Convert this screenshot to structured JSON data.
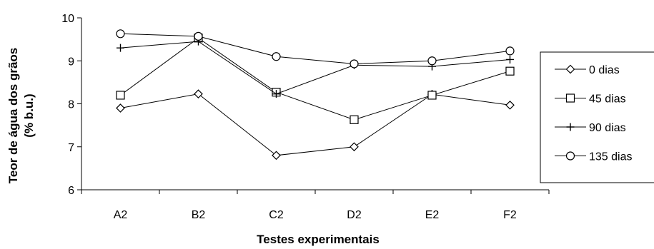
{
  "chart_data": {
    "type": "line",
    "categories": [
      "A2",
      "B2",
      "C2",
      "D2",
      "E2",
      "F2"
    ],
    "series": [
      {
        "name": "0 dias",
        "marker": "diamond",
        "values": [
          7.9,
          8.23,
          6.8,
          7.0,
          8.22,
          7.97
        ]
      },
      {
        "name": "45 dias",
        "marker": "square",
        "values": [
          8.2,
          9.53,
          8.27,
          7.63,
          8.2,
          8.76
        ]
      },
      {
        "name": "90 dias",
        "marker": "plus",
        "values": [
          9.3,
          9.45,
          8.23,
          8.9,
          8.87,
          9.03
        ]
      },
      {
        "name": "135 dias",
        "marker": "circle",
        "values": [
          9.63,
          9.57,
          9.1,
          8.93,
          9.0,
          9.23
        ]
      }
    ],
    "xlabel": "Testes experimentais",
    "ylabel_line1": "Teor de água dos grãos",
    "ylabel_line2": "(% b.u.)",
    "ylim": [
      6,
      10
    ],
    "yticks": [
      6,
      7,
      8,
      9,
      10
    ],
    "grid": false,
    "legend_position": "right",
    "line_color": "#000000"
  }
}
